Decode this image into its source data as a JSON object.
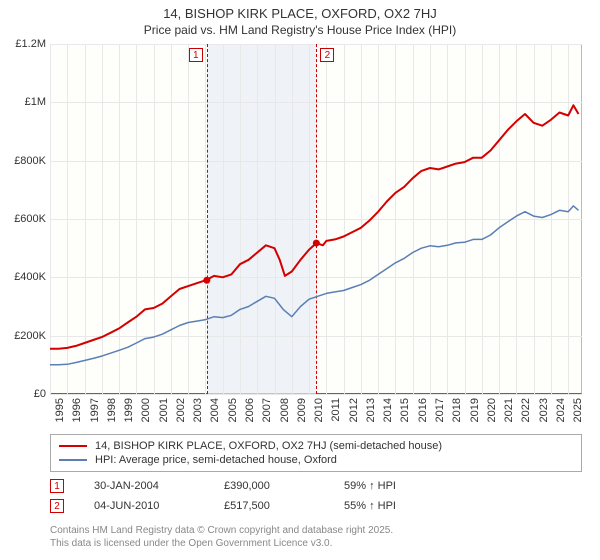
{
  "title": {
    "line1": "14, BISHOP KIRK PLACE, OXFORD, OX2 7HJ",
    "line2": "Price paid vs. HM Land Registry's House Price Index (HPI)"
  },
  "chart": {
    "type": "line",
    "background_color": "#fefefb",
    "grid_color": "#e8e8e8",
    "axis_color": "#666666",
    "y": {
      "min": 0,
      "max": 1200000,
      "ticks": [
        0,
        200000,
        400000,
        600000,
        800000,
        1000000,
        1200000
      ],
      "tick_labels": [
        "£0",
        "£200K",
        "£400K",
        "£600K",
        "£800K",
        "£1M",
        "£1.2M"
      ],
      "tick_fontsize": 11
    },
    "x": {
      "min": 1995,
      "max": 2025.8,
      "ticks": [
        1995,
        1996,
        1997,
        1998,
        1999,
        2000,
        2001,
        2002,
        2003,
        2004,
        2005,
        2006,
        2007,
        2008,
        2009,
        2010,
        2011,
        2012,
        2013,
        2014,
        2015,
        2016,
        2017,
        2018,
        2019,
        2020,
        2021,
        2022,
        2023,
        2024,
        2025
      ],
      "tick_labels": [
        "1995",
        "1996",
        "1997",
        "1998",
        "1999",
        "2000",
        "2001",
        "2002",
        "2003",
        "2004",
        "2005",
        "2006",
        "2007",
        "2008",
        "2009",
        "2010",
        "2011",
        "2012",
        "2013",
        "2014",
        "2015",
        "2016",
        "2017",
        "2018",
        "2019",
        "2020",
        "2021",
        "2022",
        "2023",
        "2024",
        "2025"
      ],
      "tick_fontsize": 11,
      "tick_rotation": -90
    },
    "shaded_band": {
      "start": 2004.08,
      "end": 2010.42,
      "color": "#e8ecf4"
    },
    "events": [
      {
        "id": "1",
        "x": 2004.08,
        "label_offset": -18
      },
      {
        "id": "2",
        "x": 2010.42,
        "label_offset": 4
      }
    ],
    "event_line_color": "#cc0000",
    "event_box_border": "#cc0000",
    "event_box_text_color": "#cc0000",
    "series": [
      {
        "name": "property",
        "label": "14, BISHOP KIRK PLACE, OXFORD, OX2 7HJ (semi-detached house)",
        "color": "#d40000",
        "width": 2,
        "marker_points": [
          {
            "x": 2004.08,
            "y": 390000
          },
          {
            "x": 2010.42,
            "y": 517500
          }
        ],
        "data": [
          [
            1995,
            155000
          ],
          [
            1995.5,
            155000
          ],
          [
            1996,
            158000
          ],
          [
            1996.5,
            165000
          ],
          [
            1997,
            175000
          ],
          [
            1997.5,
            185000
          ],
          [
            1998,
            195000
          ],
          [
            1998.5,
            210000
          ],
          [
            1999,
            225000
          ],
          [
            1999.5,
            245000
          ],
          [
            2000,
            265000
          ],
          [
            2000.5,
            290000
          ],
          [
            2001,
            295000
          ],
          [
            2001.5,
            310000
          ],
          [
            2002,
            335000
          ],
          [
            2002.5,
            360000
          ],
          [
            2003,
            370000
          ],
          [
            2003.5,
            380000
          ],
          [
            2004,
            390000
          ],
          [
            2004.5,
            405000
          ],
          [
            2005,
            400000
          ],
          [
            2005.5,
            410000
          ],
          [
            2006,
            445000
          ],
          [
            2006.5,
            460000
          ],
          [
            2007,
            485000
          ],
          [
            2007.5,
            510000
          ],
          [
            2008,
            500000
          ],
          [
            2008.3,
            460000
          ],
          [
            2008.6,
            405000
          ],
          [
            2009,
            420000
          ],
          [
            2009.5,
            460000
          ],
          [
            2010,
            495000
          ],
          [
            2010.42,
            517500
          ],
          [
            2010.8,
            510000
          ],
          [
            2011,
            525000
          ],
          [
            2011.5,
            530000
          ],
          [
            2012,
            540000
          ],
          [
            2012.5,
            555000
          ],
          [
            2013,
            570000
          ],
          [
            2013.5,
            595000
          ],
          [
            2014,
            625000
          ],
          [
            2014.5,
            660000
          ],
          [
            2015,
            690000
          ],
          [
            2015.5,
            710000
          ],
          [
            2016,
            740000
          ],
          [
            2016.5,
            765000
          ],
          [
            2017,
            775000
          ],
          [
            2017.5,
            770000
          ],
          [
            2018,
            780000
          ],
          [
            2018.5,
            790000
          ],
          [
            2019,
            795000
          ],
          [
            2019.5,
            810000
          ],
          [
            2020,
            810000
          ],
          [
            2020.5,
            835000
          ],
          [
            2021,
            870000
          ],
          [
            2021.5,
            905000
          ],
          [
            2022,
            935000
          ],
          [
            2022.5,
            960000
          ],
          [
            2023,
            930000
          ],
          [
            2023.5,
            920000
          ],
          [
            2024,
            940000
          ],
          [
            2024.5,
            965000
          ],
          [
            2025,
            955000
          ],
          [
            2025.3,
            990000
          ],
          [
            2025.6,
            960000
          ]
        ]
      },
      {
        "name": "hpi",
        "label": "HPI: Average price, semi-detached house, Oxford",
        "color": "#5b7fb5",
        "width": 1.5,
        "data": [
          [
            1995,
            100000
          ],
          [
            1995.5,
            100000
          ],
          [
            1996,
            102000
          ],
          [
            1996.5,
            108000
          ],
          [
            1997,
            115000
          ],
          [
            1997.5,
            122000
          ],
          [
            1998,
            130000
          ],
          [
            1998.5,
            140000
          ],
          [
            1999,
            150000
          ],
          [
            1999.5,
            160000
          ],
          [
            2000,
            175000
          ],
          [
            2000.5,
            190000
          ],
          [
            2001,
            195000
          ],
          [
            2001.5,
            205000
          ],
          [
            2002,
            220000
          ],
          [
            2002.5,
            235000
          ],
          [
            2003,
            245000
          ],
          [
            2003.5,
            250000
          ],
          [
            2004,
            255000
          ],
          [
            2004.5,
            265000
          ],
          [
            2005,
            262000
          ],
          [
            2005.5,
            270000
          ],
          [
            2006,
            290000
          ],
          [
            2006.5,
            300000
          ],
          [
            2007,
            318000
          ],
          [
            2007.5,
            335000
          ],
          [
            2008,
            328000
          ],
          [
            2008.5,
            290000
          ],
          [
            2009,
            265000
          ],
          [
            2009.5,
            300000
          ],
          [
            2010,
            325000
          ],
          [
            2010.5,
            335000
          ],
          [
            2011,
            345000
          ],
          [
            2011.5,
            350000
          ],
          [
            2012,
            355000
          ],
          [
            2012.5,
            365000
          ],
          [
            2013,
            375000
          ],
          [
            2013.5,
            390000
          ],
          [
            2014,
            410000
          ],
          [
            2014.5,
            430000
          ],
          [
            2015,
            450000
          ],
          [
            2015.5,
            465000
          ],
          [
            2016,
            485000
          ],
          [
            2016.5,
            500000
          ],
          [
            2017,
            508000
          ],
          [
            2017.5,
            505000
          ],
          [
            2018,
            510000
          ],
          [
            2018.5,
            518000
          ],
          [
            2019,
            520000
          ],
          [
            2019.5,
            530000
          ],
          [
            2020,
            530000
          ],
          [
            2020.5,
            545000
          ],
          [
            2021,
            570000
          ],
          [
            2021.5,
            590000
          ],
          [
            2022,
            610000
          ],
          [
            2022.5,
            625000
          ],
          [
            2023,
            610000
          ],
          [
            2023.5,
            605000
          ],
          [
            2024,
            615000
          ],
          [
            2024.5,
            630000
          ],
          [
            2025,
            625000
          ],
          [
            2025.3,
            645000
          ],
          [
            2025.6,
            630000
          ]
        ]
      }
    ]
  },
  "legend": {
    "border_color": "#aaaaaa",
    "items": [
      {
        "color": "#d40000",
        "label": "14, BISHOP KIRK PLACE, OXFORD, OX2 7HJ (semi-detached house)"
      },
      {
        "color": "#5b7fb5",
        "label": "HPI: Average price, semi-detached house, Oxford"
      }
    ]
  },
  "footer": {
    "rows": [
      {
        "badge": "1",
        "date": "30-JAN-2004",
        "price": "£390,000",
        "pct": "59% ↑ HPI"
      },
      {
        "badge": "2",
        "date": "04-JUN-2010",
        "price": "£517,500",
        "pct": "55% ↑ HPI"
      }
    ]
  },
  "attribution": {
    "line1": "Contains HM Land Registry data © Crown copyright and database right 2025.",
    "line2": "This data is licensed under the Open Government Licence v3.0."
  }
}
